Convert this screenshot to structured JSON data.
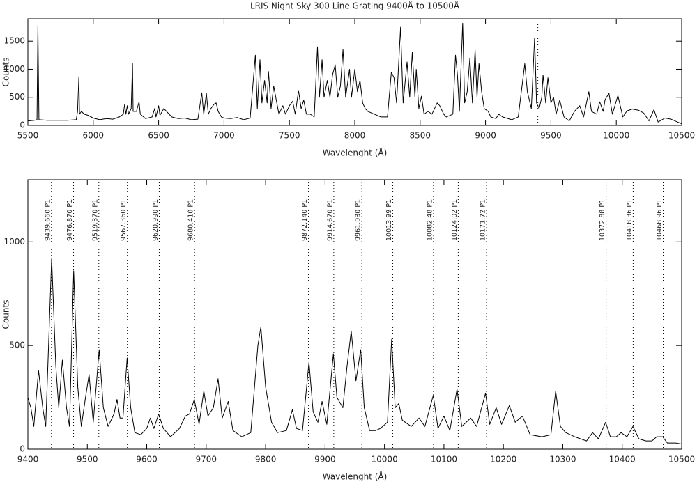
{
  "chart_data": [
    {
      "type": "line",
      "title": "LRIS Night Sky 300 Line Grating 9400Å to 10500Å",
      "x_label": "Wavelenght (Å)",
      "y_label": "Counts",
      "xlim": [
        5500,
        10500
      ],
      "xticks": [
        5500,
        6000,
        6500,
        7000,
        7500,
        8000,
        8500,
        9000,
        9500,
        10000,
        10500
      ],
      "ylim": [
        0,
        1900
      ],
      "yticks": [
        0,
        500,
        1000,
        1500
      ],
      "marker_x": 9400,
      "color": "#000000",
      "x": [
        5500,
        5550,
        5570,
        5577,
        5585,
        5650,
        5700,
        5800,
        5870,
        5880,
        5890,
        5895,
        5910,
        5930,
        5960,
        6000,
        6050,
        6100,
        6150,
        6200,
        6230,
        6240,
        6250,
        6260,
        6270,
        6290,
        6300,
        6305,
        6330,
        6350,
        6360,
        6400,
        6450,
        6470,
        6480,
        6500,
        6510,
        6540,
        6560,
        6580,
        6600,
        6650,
        6700,
        6750,
        6800,
        6830,
        6845,
        6865,
        6880,
        6900,
        6925,
        6940,
        6955,
        6980,
        7000,
        7050,
        7100,
        7150,
        7200,
        7240,
        7255,
        7275,
        7290,
        7310,
        7330,
        7340,
        7360,
        7380,
        7400,
        7420,
        7450,
        7470,
        7500,
        7525,
        7545,
        7570,
        7590,
        7610,
        7630,
        7660,
        7690,
        7715,
        7730,
        7750,
        7765,
        7790,
        7810,
        7830,
        7850,
        7870,
        7890,
        7910,
        7930,
        7960,
        7975,
        8000,
        8020,
        8040,
        8060,
        8080,
        8100,
        8150,
        8200,
        8250,
        8280,
        8300,
        8320,
        8350,
        8370,
        8400,
        8420,
        8440,
        8460,
        8470,
        8490,
        8510,
        8530,
        8560,
        8590,
        8630,
        8650,
        8680,
        8700,
        8750,
        8770,
        8785,
        8800,
        8825,
        8840,
        8860,
        8880,
        8900,
        8920,
        8935,
        8950,
        8970,
        8990,
        9020,
        9040,
        9080,
        9100,
        9130,
        9200,
        9250,
        9300,
        9320,
        9350,
        9375,
        9390,
        9410,
        9430,
        9440,
        9460,
        9477,
        9500,
        9520,
        9540,
        9567,
        9600,
        9640,
        9680,
        9720,
        9750,
        9790,
        9810,
        9850,
        9873,
        9900,
        9914,
        9944,
        9970,
        10012,
        10050,
        10082,
        10122,
        10170,
        10210,
        10250,
        10288,
        10320,
        10372,
        10418,
        10468,
        10500
      ],
      "values": [
        80,
        90,
        100,
        1780,
        100,
        90,
        90,
        90,
        100,
        250,
        870,
        200,
        250,
        200,
        180,
        130,
        100,
        120,
        110,
        150,
        200,
        370,
        200,
        350,
        200,
        300,
        1100,
        250,
        250,
        420,
        200,
        120,
        150,
        300,
        150,
        350,
        180,
        300,
        250,
        200,
        150,
        120,
        130,
        100,
        110,
        580,
        200,
        570,
        200,
        300,
        380,
        400,
        250,
        150,
        130,
        120,
        140,
        100,
        130,
        1250,
        300,
        1170,
        400,
        800,
        400,
        960,
        300,
        700,
        450,
        200,
        350,
        200,
        350,
        430,
        200,
        620,
        300,
        450,
        200,
        200,
        150,
        1400,
        500,
        1170,
        500,
        800,
        500,
        900,
        1080,
        500,
        700,
        1350,
        500,
        1000,
        500,
        1000,
        600,
        800,
        400,
        300,
        250,
        200,
        150,
        150,
        950,
        850,
        400,
        1750,
        400,
        1130,
        500,
        1300,
        500,
        1000,
        300,
        520,
        200,
        250,
        200,
        400,
        350,
        200,
        150,
        200,
        1250,
        900,
        250,
        1820,
        400,
        600,
        1200,
        400,
        1350,
        500,
        1100,
        600,
        300,
        250,
        150,
        120,
        200,
        150,
        100,
        150,
        1100,
        600,
        300,
        1560,
        400,
        300,
        500,
        900,
        400,
        850,
        400,
        500,
        200,
        450,
        150,
        80,
        250,
        350,
        150,
        600,
        250,
        200,
        420,
        250,
        460,
        570,
        200,
        530,
        150,
        260,
        290,
        270,
        220,
        80,
        280,
        60,
        130,
        110,
        60,
        30
      ]
    },
    {
      "type": "line",
      "x_label": "Wavelenght (Å)",
      "y_label": "Counts",
      "xlim": [
        9400,
        10500
      ],
      "xticks": [
        9400,
        9500,
        9600,
        9700,
        9800,
        9900,
        10000,
        10100,
        10200,
        10300,
        10400,
        10500
      ],
      "ylim": [
        0,
        1300
      ],
      "yticks": [
        0,
        500,
        1000
      ],
      "color": "#000000",
      "annotations": [
        {
          "x": 9439.66,
          "label": "9439.660 P1"
        },
        {
          "x": 9476.87,
          "label": "9476.870 P1"
        },
        {
          "x": 9519.37,
          "label": "9519.370 P1"
        },
        {
          "x": 9567.36,
          "label": "9567.360 P1"
        },
        {
          "x": 9620.99,
          "label": "9620.990 P1"
        },
        {
          "x": 9680.41,
          "label": "9680.410 P1"
        },
        {
          "x": 9872.14,
          "label": "9872.140 P1"
        },
        {
          "x": 9914.67,
          "label": "9914.670 P1"
        },
        {
          "x": 9961.93,
          "label": "9961.930 P1"
        },
        {
          "x": 10013.99,
          "label": "10013.99 P1"
        },
        {
          "x": 10082.48,
          "label": "10082.48 P1"
        },
        {
          "x": 10124.02,
          "label": "10124.02 P1"
        },
        {
          "x": 10171.72,
          "label": "10171.72 P1"
        },
        {
          "x": 10372.88,
          "label": "10372.88 P1"
        },
        {
          "x": 10418.36,
          "label": "10418.36 P1"
        },
        {
          "x": 10468.96,
          "label": "10468.96 P1"
        }
      ],
      "x": [
        9400,
        9405,
        9410,
        9418,
        9425,
        9430,
        9440,
        9447,
        9452,
        9458,
        9465,
        9470,
        9477,
        9484,
        9490,
        9497,
        9503,
        9510,
        9520,
        9527,
        9535,
        9545,
        9550,
        9555,
        9560,
        9567,
        9573,
        9580,
        9590,
        9600,
        9606,
        9612,
        9620,
        9628,
        9640,
        9655,
        9665,
        9672,
        9680,
        9688,
        9696,
        9703,
        9712,
        9720,
        9727,
        9737,
        9745,
        9760,
        9775,
        9787,
        9792,
        9800,
        9810,
        9820,
        9835,
        9845,
        9852,
        9862,
        9873,
        9880,
        9888,
        9895,
        9903,
        9914,
        9920,
        9930,
        9937,
        9944,
        9952,
        9960,
        9966,
        9975,
        9985,
        9993,
        10005,
        10012,
        10018,
        10024,
        10030,
        10045,
        10058,
        10068,
        10082,
        10090,
        10100,
        10110,
        10122,
        10130,
        10145,
        10155,
        10170,
        10177,
        10188,
        10197,
        10210,
        10220,
        10232,
        10245,
        10265,
        10280,
        10288,
        10296,
        10305,
        10320,
        10340,
        10350,
        10360,
        10372,
        10380,
        10390,
        10398,
        10408,
        10418,
        10428,
        10440,
        10450,
        10458,
        10468,
        10476,
        10490,
        10500
      ],
      "values": [
        250,
        200,
        110,
        380,
        200,
        110,
        920,
        400,
        200,
        430,
        200,
        110,
        860,
        300,
        110,
        250,
        360,
        130,
        480,
        200,
        110,
        170,
        240,
        150,
        150,
        440,
        200,
        80,
        70,
        100,
        150,
        100,
        170,
        100,
        60,
        100,
        160,
        170,
        240,
        120,
        280,
        160,
        200,
        340,
        150,
        230,
        90,
        60,
        80,
        500,
        590,
        300,
        130,
        80,
        90,
        190,
        100,
        90,
        420,
        180,
        130,
        230,
        120,
        460,
        250,
        200,
        400,
        570,
        330,
        480,
        200,
        90,
        90,
        100,
        130,
        530,
        200,
        220,
        140,
        110,
        150,
        110,
        260,
        100,
        160,
        90,
        290,
        110,
        150,
        110,
        270,
        120,
        200,
        120,
        210,
        130,
        160,
        70,
        60,
        70,
        280,
        110,
        80,
        60,
        40,
        80,
        50,
        130,
        60,
        60,
        80,
        60,
        110,
        50,
        40,
        40,
        60,
        60,
        30,
        30,
        25
      ]
    }
  ]
}
